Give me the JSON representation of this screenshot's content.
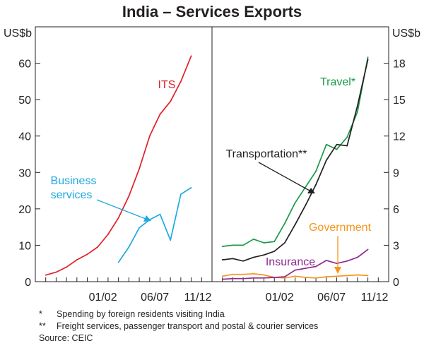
{
  "chart_data": [
    {
      "type": "line",
      "panel": "left",
      "title": "India – Services Exports",
      "ylabel": "US$b",
      "ylim": [
        0,
        70
      ],
      "yticks": [
        "0",
        "10",
        "20",
        "30",
        "40",
        "50",
        "60"
      ],
      "x_tick_labels": [
        "01/02",
        "06/07",
        "11/12"
      ],
      "series": [
        {
          "name": "ITS",
          "label": "ITS",
          "color": "#e0202a",
          "x": [
            1996,
            1997,
            1998,
            1999,
            2000,
            2001,
            2002,
            2003,
            2004,
            2005,
            2006,
            2007,
            2008,
            2009,
            2010,
            2011
          ],
          "values": [
            1.8,
            2.6,
            4.0,
            6.0,
            7.5,
            9.5,
            13.0,
            17.5,
            23.5,
            31.0,
            40.0,
            46.0,
            49.5,
            55.0,
            62.0,
            null
          ]
        },
        {
          "name": "Business services",
          "label_lines": [
            "Business",
            "services"
          ],
          "color": "#1ea9e1",
          "x": [
            2003,
            2004,
            2005,
            2006,
            2007,
            2008,
            2009,
            2010
          ],
          "values": [
            5.3,
            9.5,
            14.8,
            17.0,
            18.5,
            11.4,
            24.0,
            25.8
          ]
        }
      ]
    },
    {
      "type": "line",
      "panel": "right",
      "ylabel": "US$b",
      "ylim": [
        0,
        21
      ],
      "yticks": [
        "0",
        "3",
        "6",
        "9",
        "12",
        "15",
        "18"
      ],
      "x_tick_labels": [
        "01/02",
        "06/07",
        "11/12"
      ],
      "series": [
        {
          "name": "Travel*",
          "label": "Travel*",
          "color": "#1a9a48",
          "x": [
            1996,
            1997,
            1998,
            1999,
            2000,
            2001,
            2002,
            2003,
            2004,
            2005,
            2006,
            2007,
            2008,
            2009,
            2010
          ],
          "values": [
            2.9,
            3.0,
            3.0,
            3.5,
            3.2,
            3.3,
            4.8,
            6.5,
            7.8,
            9.1,
            11.3,
            10.9,
            11.9,
            14.0,
            18.5
          ]
        },
        {
          "name": "Transportation**",
          "label": "Transportation**",
          "color": "#231f20",
          "x": [
            1996,
            1997,
            1998,
            1999,
            2000,
            2001,
            2002,
            2003,
            2004,
            2005,
            2006,
            2007,
            2008,
            2009,
            2010
          ],
          "values": [
            1.8,
            1.9,
            1.7,
            2.0,
            2.2,
            2.5,
            3.2,
            4.7,
            6.3,
            8.0,
            10.0,
            11.3,
            11.2,
            14.5,
            18.3
          ]
        },
        {
          "name": "Government",
          "label": "Government",
          "color": "#f7941d",
          "x": [
            1996,
            1997,
            1998,
            1999,
            2000,
            2001,
            2002,
            2003,
            2004,
            2005,
            2006,
            2007,
            2008,
            2009,
            2010
          ],
          "values": [
            0.45,
            0.6,
            0.6,
            0.65,
            0.55,
            0.35,
            0.3,
            0.45,
            0.35,
            0.3,
            0.4,
            0.45,
            0.5,
            0.55,
            0.5
          ]
        },
        {
          "name": "Insurance",
          "label": "Insurance",
          "color": "#8e2a8f",
          "x": [
            1996,
            1997,
            1998,
            1999,
            2000,
            2001,
            2002,
            2003,
            2004,
            2005,
            2006,
            2007,
            2008,
            2009,
            2010
          ],
          "values": [
            0.2,
            0.25,
            0.25,
            0.3,
            0.3,
            0.35,
            0.4,
            0.95,
            1.1,
            1.25,
            1.75,
            1.5,
            1.7,
            2.0,
            2.65
          ]
        }
      ]
    }
  ],
  "footnotes": [
    {
      "marker": "*",
      "text": "Spending by foreign residents visiting India"
    },
    {
      "marker": "**",
      "text": "Freight services, passenger transport and postal & courier services"
    }
  ],
  "source": "Source: CEIC"
}
